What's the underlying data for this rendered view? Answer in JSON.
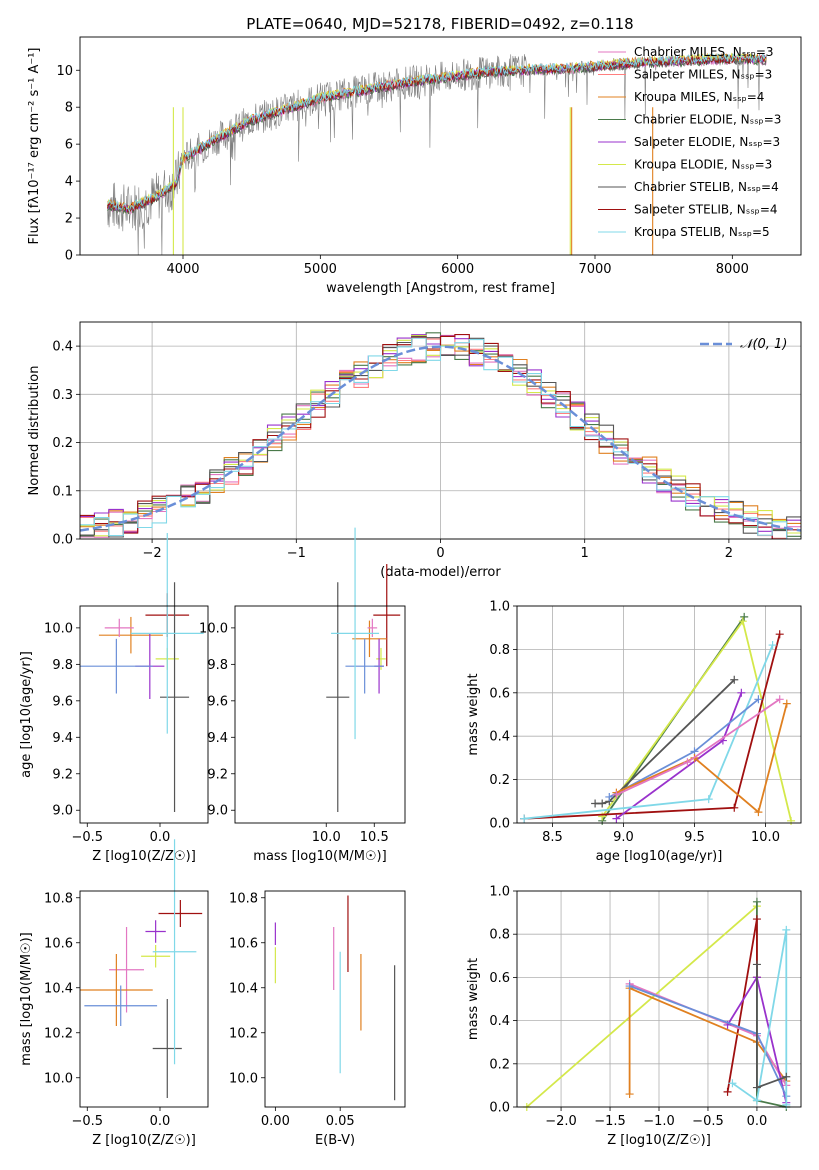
{
  "figure_title": "PLATE=0640, MJD=52178, FIBERID=0492, z=0.118",
  "colors": {
    "Chabrier MILES": "#e377c2",
    "Salpeter MILES": "#ff7f7f",
    "Kroupa MILES": "#e08020",
    "Chabrier ELODIE": "#4a7a4a",
    "Salpeter ELODIE": "#9932cc",
    "Kroupa ELODIE": "#d4e84a",
    "Chabrier STELIB": "#555555",
    "Salpeter STELIB": "#a01010",
    "Kroupa STELIB": "#80d8e8",
    "combined": "#6a8fd8",
    "observed": "#7f7f7f"
  },
  "chart_data": [
    {
      "type": "line",
      "xlabel": "wavelength [Angstrom, rest frame]",
      "ylabel": "Flux [fλ10⁻¹⁷ erg cm⁻² s⁻¹ A⁻¹]",
      "xlim": [
        3250,
        8500
      ],
      "ylim": [
        0,
        11.8
      ],
      "xticks": [
        "4000",
        "5000",
        "6000",
        "7000",
        "8000"
      ],
      "yticks": [
        "0",
        "2",
        "4",
        "6",
        "8",
        "10"
      ],
      "legend_position": "right",
      "series": [
        {
          "name": "Chabrier MILES, N_SSP=3"
        },
        {
          "name": "Salpeter MILES, N_SSP=3"
        },
        {
          "name": "Kroupa MILES, N_SSP=4"
        },
        {
          "name": "Chabrier ELODIE, N_SSP=3"
        },
        {
          "name": "Salpeter ELODIE, N_SSP=3"
        },
        {
          "name": "Kroupa ELODIE, N_SSP=3"
        },
        {
          "name": "Chabrier STELIB, N_SSP=4"
        },
        {
          "name": "Salpeter STELIB, N_SSP=4"
        },
        {
          "name": "Kroupa STELIB, N_SSP=5"
        }
      ],
      "model_continuum": {
        "x": [
          3450,
          3600,
          3800,
          3950,
          4000,
          4200,
          4500,
          4800,
          5000,
          5300,
          5600,
          5900,
          6200,
          6500,
          6800,
          7000,
          7300,
          7600,
          7900,
          8200
        ],
        "y": [
          2.7,
          2.5,
          3.1,
          3.9,
          5.2,
          6.1,
          7.3,
          8.0,
          8.5,
          8.9,
          9.3,
          9.6,
          9.9,
          10.0,
          10.1,
          10.2,
          10.4,
          10.5,
          10.6,
          10.6
        ]
      }
    },
    {
      "type": "histogram",
      "xlabel": "(data-model)/error",
      "ylabel": "Normed distribution",
      "xlim": [
        -2.5,
        2.5
      ],
      "ylim": [
        0,
        0.45
      ],
      "xticks": [
        "−2",
        "−1",
        "0",
        "1",
        "2"
      ],
      "yticks": [
        "0.0",
        "0.1",
        "0.2",
        "0.3",
        "0.4"
      ],
      "grid": true,
      "reference": "𝒩(0, 1)",
      "legend_position": "top-right"
    },
    {
      "type": "scatter",
      "xlabel": "Z [log10(Z/Z☉)]",
      "ylabel": "age [log10(age/yr)]",
      "xlim": [
        -0.55,
        0.33
      ],
      "ylim": [
        8.93,
        10.12
      ],
      "xticks": [
        "−0.5",
        "0.0"
      ],
      "yticks": [
        "9.0",
        "9.2",
        "9.4",
        "9.6",
        "9.8",
        "10.0"
      ],
      "points": [
        {
          "x": 0.05,
          "y": 10.07,
          "xerr": 0.15,
          "yerr": 0.12,
          "s": "Salpeter STELIB"
        },
        {
          "x": -0.2,
          "y": 9.96,
          "xerr": 0.22,
          "yerr": 0.1,
          "s": "Kroupa MILES"
        },
        {
          "x": -0.28,
          "y": 10.0,
          "xerr": 0.1,
          "yerr": 0.05,
          "s": "Chabrier MILES"
        },
        {
          "x": 0.05,
          "y": 9.83,
          "xerr": 0.08,
          "yerr": 0.06,
          "s": "Kroupa ELODIE"
        },
        {
          "x": -0.07,
          "y": 9.79,
          "xerr": 0.1,
          "yerr": 0.18,
          "s": "Salpeter ELODIE"
        },
        {
          "x": -0.3,
          "y": 9.79,
          "xerr": 0.25,
          "yerr": 0.15,
          "s": "combined"
        },
        {
          "x": 0.1,
          "y": 9.62,
          "xerr": 0.1,
          "yerr": 0.63,
          "s": "Chabrier STELIB"
        },
        {
          "x": 0.05,
          "y": 9.97,
          "xerr": 0.25,
          "yerr": 0.55,
          "s": "Kroupa STELIB"
        }
      ]
    },
    {
      "type": "scatter",
      "xlabel": "mass [log10(M/M☉)]",
      "ylabel": "",
      "xlim": [
        9.05,
        10.82
      ],
      "ylim": [
        8.93,
        10.12
      ],
      "xticks": [
        "10.0",
        "10.5"
      ],
      "yticks": [
        "9.0",
        "9.2",
        "9.4",
        "9.6",
        "9.8",
        "10.0"
      ],
      "points": [
        {
          "x": 10.63,
          "y": 10.07,
          "xerr": 0.14,
          "yerr": 0.28,
          "s": "Salpeter STELIB"
        },
        {
          "x": 10.45,
          "y": 9.94,
          "xerr": 0.18,
          "yerr": 0.1,
          "s": "Kroupa MILES"
        },
        {
          "x": 10.48,
          "y": 10.0,
          "xerr": 0.05,
          "yerr": 0.05,
          "s": "Chabrier MILES"
        },
        {
          "x": 10.57,
          "y": 9.83,
          "xerr": 0.05,
          "yerr": 0.06,
          "s": "Kroupa ELODIE"
        },
        {
          "x": 10.55,
          "y": 9.79,
          "xerr": 0.05,
          "yerr": 0.15,
          "s": "Salpeter ELODIE"
        },
        {
          "x": 10.4,
          "y": 9.79,
          "xerr": 0.2,
          "yerr": 0.15,
          "s": "combined"
        },
        {
          "x": 10.12,
          "y": 9.62,
          "xerr": 0.12,
          "yerr": 0.63,
          "s": "Chabrier STELIB"
        },
        {
          "x": 10.3,
          "y": 9.97,
          "xerr": 0.25,
          "yerr": 0.58,
          "s": "Kroupa STELIB"
        }
      ]
    },
    {
      "type": "line",
      "xlabel": "age [log10(age/yr)]",
      "ylabel": "mass weight",
      "xlim": [
        8.25,
        10.25
      ],
      "ylim": [
        0,
        1
      ],
      "xticks": [
        "8.5",
        "9.0",
        "9.5",
        "10.0"
      ],
      "yticks": [
        "0.0",
        "0.2",
        "0.4",
        "0.6",
        "0.8",
        "1.0"
      ],
      "grid": true,
      "series": [
        {
          "name": "Chabrier ELODIE",
          "s": "Chabrier ELODIE",
          "x": [
            8.85,
            9.85
          ],
          "y": [
            0.01,
            0.95
          ]
        },
        {
          "name": "Kroupa ELODIE",
          "s": "Kroupa ELODIE",
          "x": [
            8.85,
            9.84,
            10.18
          ],
          "y": [
            0.03,
            0.93,
            0.01
          ]
        },
        {
          "name": "Salpeter STELIB",
          "s": "Salpeter STELIB",
          "x": [
            8.3,
            9.78,
            10.1
          ],
          "y": [
            0.02,
            0.07,
            0.87
          ]
        },
        {
          "name": "Chabrier STELIB",
          "s": "Chabrier STELIB",
          "x": [
            8.8,
            8.85,
            8.9,
            9.78
          ],
          "y": [
            0.09,
            0.09,
            0.1,
            0.66
          ]
        },
        {
          "name": "Salpeter ELODIE",
          "s": "Salpeter ELODIE",
          "x": [
            8.95,
            9.7,
            9.83
          ],
          "y": [
            0.02,
            0.38,
            0.6
          ]
        },
        {
          "name": "Kroupa STELIB",
          "s": "Kroupa STELIB",
          "x": [
            8.3,
            9.6,
            10.05
          ],
          "y": [
            0.02,
            0.11,
            0.82
          ]
        },
        {
          "name": "combined",
          "s": "combined",
          "x": [
            8.9,
            9.5,
            9.95
          ],
          "y": [
            0.12,
            0.33,
            0.57
          ]
        },
        {
          "name": "Kroupa MILES",
          "s": "Kroupa MILES",
          "x": [
            8.95,
            9.5,
            9.95,
            10.15
          ],
          "y": [
            0.14,
            0.3,
            0.05,
            0.55
          ]
        },
        {
          "name": "Chabrier MILES",
          "s": "Chabrier MILES",
          "x": [
            8.95,
            9.45,
            10.1
          ],
          "y": [
            0.13,
            0.28,
            0.57
          ]
        }
      ]
    },
    {
      "type": "scatter",
      "xlabel": "Z [log10(Z/Z☉)]",
      "ylabel": "mass [log10(M/M☉)]",
      "xlim": [
        -0.55,
        0.33
      ],
      "ylim": [
        9.87,
        10.83
      ],
      "xticks": [
        "−0.5",
        "0.0"
      ],
      "yticks": [
        "10.0",
        "10.2",
        "10.4",
        "10.6",
        "10.8"
      ],
      "points": [
        {
          "x": 0.14,
          "y": 10.73,
          "xerr": 0.15,
          "yerr": 0.06,
          "s": "Salpeter STELIB"
        },
        {
          "x": -0.03,
          "y": 10.65,
          "xerr": 0.07,
          "yerr": 0.05,
          "s": "Salpeter ELODIE"
        },
        {
          "x": -0.03,
          "y": 10.54,
          "xerr": 0.1,
          "yerr": 0.05,
          "s": "Kroupa ELODIE"
        },
        {
          "x": -0.23,
          "y": 10.48,
          "xerr": 0.12,
          "yerr": 0.19,
          "s": "Chabrier MILES"
        },
        {
          "x": -0.3,
          "y": 10.39,
          "xerr": 0.25,
          "yerr": 0.16,
          "s": "Kroupa MILES"
        },
        {
          "x": -0.27,
          "y": 10.32,
          "xerr": 0.25,
          "yerr": 0.09,
          "s": "combined"
        },
        {
          "x": 0.05,
          "y": 10.13,
          "xerr": 0.1,
          "yerr": 0.22,
          "s": "Chabrier STELIB"
        },
        {
          "x": 0.1,
          "y": 10.56,
          "xerr": 0.15,
          "yerr": 0.5,
          "s": "Kroupa STELIB"
        }
      ]
    },
    {
      "type": "scatter",
      "xlabel": "E(B-V)",
      "ylabel": "",
      "xlim": [
        -0.008,
        0.1
      ],
      "ylim": [
        9.87,
        10.83
      ],
      "xticks": [
        "0.00",
        "0.05"
      ],
      "yticks": [
        "10.0",
        "10.2",
        "10.4",
        "10.6",
        "10.8"
      ],
      "points": [
        {
          "x": 0.0,
          "y": 10.64,
          "yerr": 0.05,
          "s": "Salpeter ELODIE"
        },
        {
          "x": 0.0,
          "y": 10.5,
          "yerr": 0.08,
          "s": "Kroupa ELODIE"
        },
        {
          "x": 0.045,
          "y": 10.53,
          "yerr": 0.14,
          "s": "Chabrier MILES"
        },
        {
          "x": 0.05,
          "y": 10.29,
          "yerr": 0.27,
          "s": "Kroupa STELIB"
        },
        {
          "x": 0.056,
          "y": 10.64,
          "yerr": 0.17,
          "s": "Salpeter STELIB"
        },
        {
          "x": 0.066,
          "y": 10.38,
          "yerr": 0.17,
          "s": "Kroupa MILES"
        },
        {
          "x": 0.092,
          "y": 10.2,
          "yerr": 0.3,
          "s": "Chabrier STELIB"
        }
      ]
    },
    {
      "type": "line",
      "xlabel": "Z [log10(Z/Z☉)]",
      "ylabel": "mass weight",
      "xlim": [
        -2.45,
        0.45
      ],
      "ylim": [
        0,
        1
      ],
      "xticks": [
        "−2.0",
        "−1.5",
        "−1.0",
        "−0.5",
        "0.0"
      ],
      "yticks": [
        "0.0",
        "0.2",
        "0.4",
        "0.6",
        "0.8",
        "1.0"
      ],
      "grid": true,
      "series": [
        {
          "name": "Kroupa ELODIE",
          "s": "Kroupa ELODIE",
          "x": [
            -2.35,
            0.0
          ],
          "y": [
            0.0,
            0.93
          ]
        },
        {
          "name": "Chabrier ELODIE",
          "s": "Chabrier ELODIE",
          "x": [
            0.0,
            0.0,
            0.3
          ],
          "y": [
            0.95,
            0.03,
            0.0
          ]
        },
        {
          "name": "Salpeter STELIB",
          "s": "Salpeter STELIB",
          "x": [
            -0.3,
            0.0,
            0.0
          ],
          "y": [
            0.07,
            0.87,
            0.6
          ]
        },
        {
          "name": "Kroupa MILES",
          "s": "Kroupa MILES",
          "x": [
            -1.3,
            -1.3,
            0.0,
            0.3
          ],
          "y": [
            0.06,
            0.55,
            0.3,
            0.12
          ]
        },
        {
          "name": "Chabrier MILES",
          "s": "Chabrier MILES",
          "x": [
            -1.3,
            0.0,
            0.3
          ],
          "y": [
            0.57,
            0.33,
            0.1
          ]
        },
        {
          "name": "Salpeter ELODIE",
          "s": "Salpeter ELODIE",
          "x": [
            -0.3,
            0.0,
            0.3
          ],
          "y": [
            0.38,
            0.6,
            0.02
          ]
        },
        {
          "name": "combined",
          "s": "combined",
          "x": [
            -1.3,
            0.0,
            0.3
          ],
          "y": [
            0.56,
            0.34,
            0.05
          ]
        },
        {
          "name": "Kroupa STELIB",
          "s": "Kroupa STELIB",
          "x": [
            -0.25,
            0.0,
            0.3,
            0.3
          ],
          "y": [
            0.11,
            0.03,
            0.82,
            0.01
          ]
        },
        {
          "name": "Chabrier STELIB",
          "s": "Chabrier STELIB",
          "x": [
            0.0,
            0.0,
            0.3
          ],
          "y": [
            0.66,
            0.09,
            0.14
          ]
        }
      ]
    }
  ]
}
